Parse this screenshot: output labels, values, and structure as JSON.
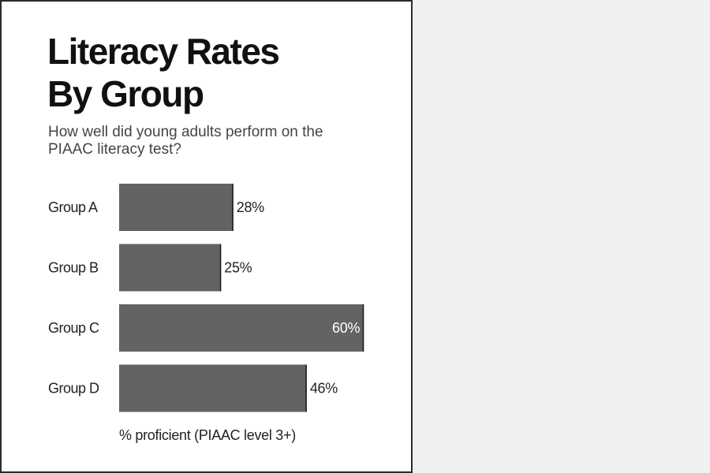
{
  "colors": {
    "bar": "#636363",
    "bar_edge": "#1a1a1a",
    "label_outside": "#222222",
    "label_inside": "#ffffff"
  },
  "chart_data": {
    "type": "bar",
    "orientation": "horizontal",
    "title_lines": [
      "Literacy Rates",
      "By Group"
    ],
    "subtitle_lines": [
      "How well did young adults perform on the",
      "PIAAC literacy test?"
    ],
    "categories": [
      "Group A",
      "Group B",
      "Group C",
      "Group D"
    ],
    "values": [
      28,
      25,
      60,
      46
    ],
    "value_labels": [
      "28%",
      "25%",
      "60%",
      "46%"
    ],
    "xlabel": "% proficient (PIAAC level 3+)",
    "ylabel": "",
    "xlim": [
      0,
      60
    ],
    "grid": false,
    "legend": "none"
  }
}
